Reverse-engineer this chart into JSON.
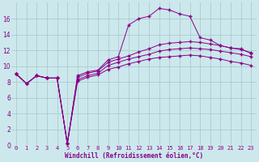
{
  "xlabel": "Windchill (Refroidissement éolien,°C)",
  "background_color": "#cce8ec",
  "grid_color": "#aaccd0",
  "line_color": "#880088",
  "xlim": [
    -0.5,
    23.5
  ],
  "ylim": [
    0,
    18
  ],
  "xticks": [
    0,
    1,
    2,
    3,
    4,
    5,
    6,
    7,
    8,
    9,
    10,
    11,
    12,
    13,
    14,
    15,
    16,
    17,
    18,
    19,
    20,
    21,
    22,
    23
  ],
  "yticks": [
    0,
    2,
    4,
    6,
    8,
    10,
    12,
    14,
    16
  ],
  "series1_x": [
    0,
    1,
    2,
    3,
    4,
    5,
    6,
    7,
    8,
    9,
    10,
    11,
    12,
    13,
    14,
    15,
    16,
    17,
    18,
    19,
    20,
    21,
    22,
    23
  ],
  "series1_y": [
    9.0,
    7.8,
    8.8,
    8.5,
    8.5,
    0.2,
    8.8,
    9.3,
    9.5,
    10.8,
    11.2,
    15.2,
    16.0,
    16.3,
    17.3,
    17.1,
    16.6,
    16.3,
    13.6,
    13.3,
    12.6,
    12.3,
    12.2,
    11.6
  ],
  "series2_x": [
    0,
    1,
    2,
    3,
    4,
    5,
    6,
    7,
    8,
    9,
    10,
    11,
    12,
    13,
    14,
    15,
    16,
    17,
    18,
    19,
    20,
    21,
    22,
    23
  ],
  "series2_y": [
    9.0,
    7.8,
    8.8,
    8.5,
    8.5,
    0.2,
    8.6,
    9.1,
    9.4,
    10.5,
    10.9,
    11.3,
    11.8,
    12.2,
    12.7,
    12.9,
    13.0,
    13.1,
    13.0,
    12.8,
    12.6,
    12.3,
    12.1,
    11.7
  ],
  "series3_x": [
    0,
    1,
    2,
    3,
    4,
    5,
    6,
    7,
    8,
    9,
    10,
    11,
    12,
    13,
    14,
    15,
    16,
    17,
    18,
    19,
    20,
    21,
    22,
    23
  ],
  "series3_y": [
    9.0,
    7.8,
    8.8,
    8.5,
    8.5,
    0.2,
    8.3,
    8.8,
    9.1,
    10.1,
    10.5,
    10.9,
    11.2,
    11.5,
    11.9,
    12.1,
    12.2,
    12.3,
    12.2,
    12.1,
    11.9,
    11.7,
    11.5,
    11.2
  ],
  "series4_x": [
    0,
    1,
    2,
    3,
    4,
    5,
    6,
    7,
    8,
    9,
    10,
    11,
    12,
    13,
    14,
    15,
    16,
    17,
    18,
    19,
    20,
    21,
    22,
    23
  ],
  "series4_y": [
    9.0,
    7.8,
    8.8,
    8.5,
    8.5,
    0.2,
    8.1,
    8.6,
    8.9,
    9.6,
    9.9,
    10.3,
    10.6,
    10.9,
    11.1,
    11.2,
    11.3,
    11.4,
    11.3,
    11.1,
    10.9,
    10.6,
    10.4,
    10.1
  ],
  "xlabel_fontsize": 5.5,
  "tick_fontsize": 5.0,
  "marker_size": 1.8,
  "line_width": 0.7
}
